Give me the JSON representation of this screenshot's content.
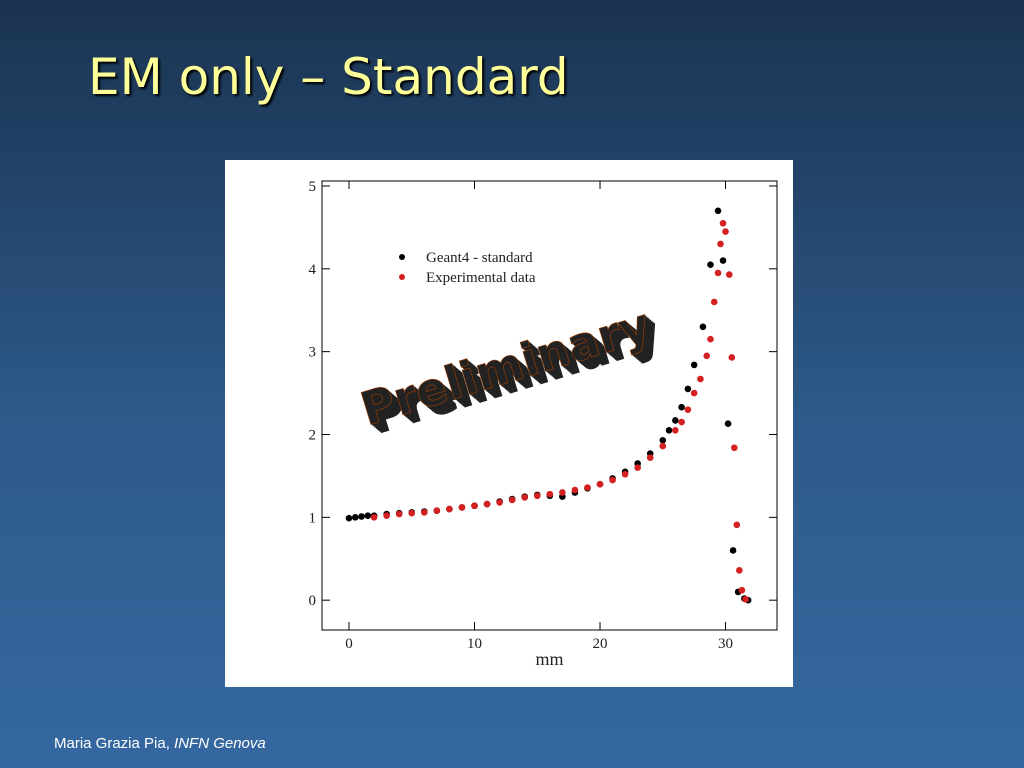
{
  "header": {
    "title": "EM only – Standard"
  },
  "footer": {
    "author": "Maria Grazia Pia,",
    "affiliation": "INFN Genova"
  },
  "chart_data": {
    "type": "scatter",
    "x_label": "mm",
    "annotation": "Preliminary",
    "legend": "upper left",
    "xlim": [
      -2.15,
      34.1
    ],
    "ylim": [
      -0.36,
      5.06
    ],
    "xticks": [
      0,
      10,
      20,
      30
    ],
    "yticks": [
      0,
      1,
      2,
      3,
      4,
      5
    ],
    "series": [
      {
        "name": "Geant4 - standard",
        "color": "#000000",
        "x": [
          0,
          0.5,
          1,
          1.5,
          2,
          3,
          4,
          5,
          6,
          7,
          8,
          9,
          10,
          11,
          12,
          13,
          14,
          15,
          16,
          17,
          18,
          19,
          20,
          21,
          22,
          23,
          24,
          25,
          25.5,
          26,
          26.5,
          27,
          27.5,
          28.2,
          28.8,
          29.4,
          29.8,
          30.2,
          30.6,
          31.0,
          31.5,
          31.8
        ],
        "values": [
          0.99,
          1.0,
          1.01,
          1.02,
          1.02,
          1.04,
          1.05,
          1.06,
          1.07,
          1.08,
          1.1,
          1.12,
          1.14,
          1.16,
          1.19,
          1.22,
          1.25,
          1.27,
          1.26,
          1.25,
          1.3,
          1.35,
          1.4,
          1.47,
          1.55,
          1.65,
          1.77,
          1.93,
          2.05,
          2.17,
          2.33,
          2.55,
          2.84,
          3.3,
          4.05,
          4.7,
          4.1,
          2.13,
          0.6,
          0.1,
          0.02,
          0.0
        ]
      },
      {
        "name": "Experimental data",
        "color": "#d42020",
        "x": [
          2,
          3,
          4,
          5,
          6,
          7,
          8,
          9,
          10,
          11,
          12,
          13,
          14,
          15,
          16,
          17,
          18,
          19,
          20,
          21,
          22,
          23,
          24,
          25,
          26,
          26.5,
          27,
          27.5,
          28,
          28.5,
          28.8,
          29.1,
          29.4,
          29.6,
          29.8,
          30.0,
          30.3,
          30.5,
          30.7,
          30.9,
          31.1,
          31.3,
          31.6
        ],
        "values": [
          1.0,
          1.02,
          1.04,
          1.05,
          1.06,
          1.08,
          1.1,
          1.12,
          1.14,
          1.16,
          1.18,
          1.21,
          1.24,
          1.26,
          1.28,
          1.3,
          1.33,
          1.36,
          1.4,
          1.45,
          1.52,
          1.6,
          1.72,
          1.86,
          2.05,
          2.15,
          2.3,
          2.5,
          2.67,
          2.95,
          3.15,
          3.6,
          3.95,
          4.3,
          4.55,
          4.45,
          3.93,
          2.93,
          1.84,
          0.91,
          0.36,
          0.12,
          0.01
        ]
      }
    ]
  }
}
